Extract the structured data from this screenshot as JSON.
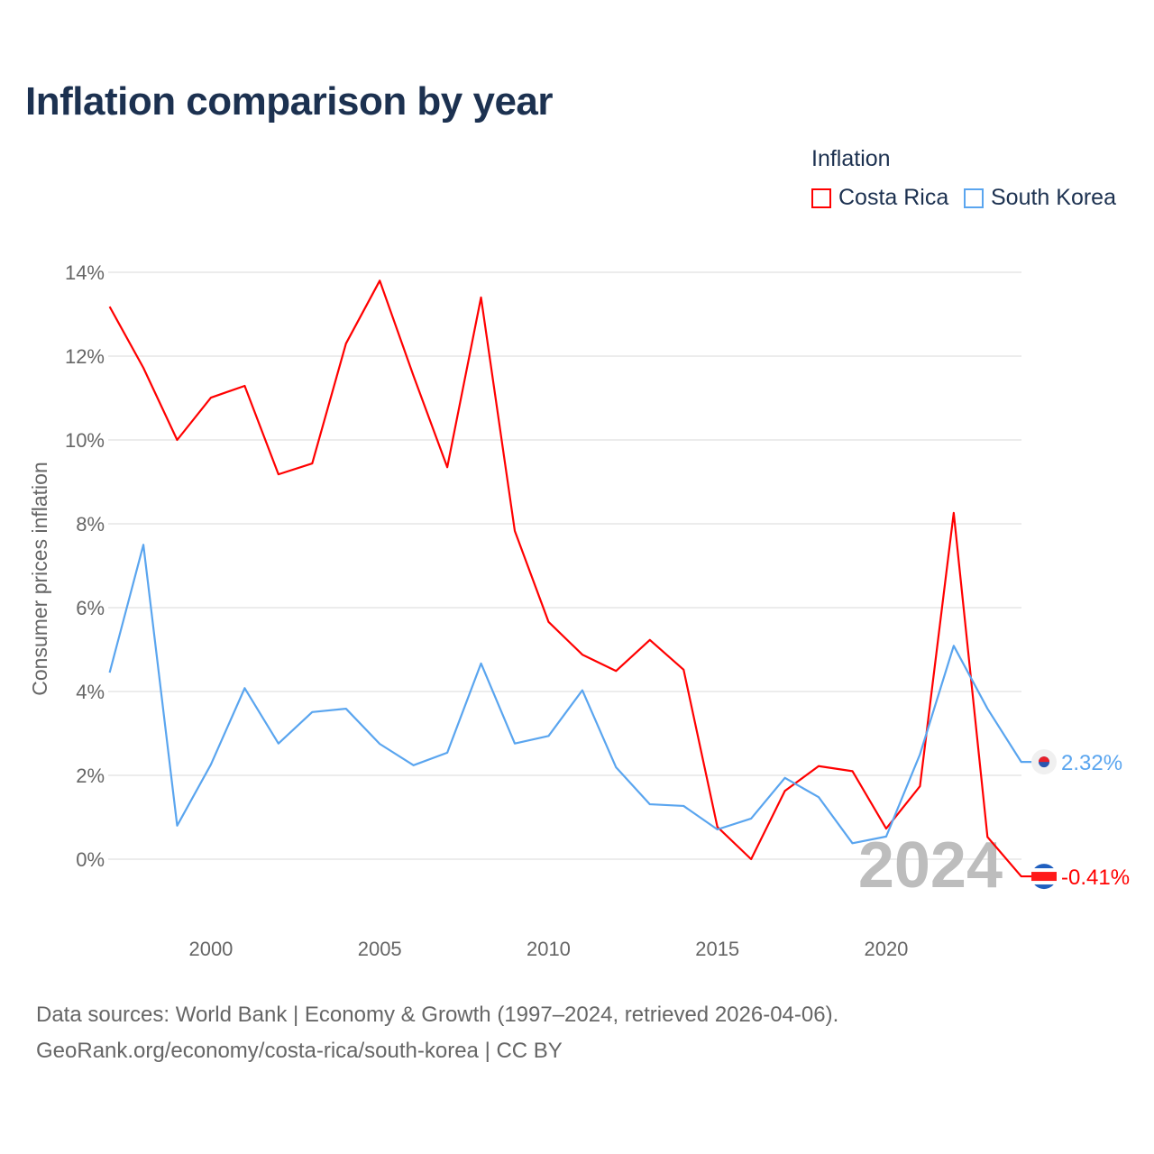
{
  "title": "Inflation comparison by year",
  "legend": {
    "title": "Inflation",
    "items": [
      {
        "name": "Costa Rica",
        "color": "#ff0000"
      },
      {
        "name": "South Korea",
        "color": "#5aa5ef"
      }
    ]
  },
  "source": {
    "line1": "Data sources: World Bank | Economy & Growth (1997–2024, retrieved 2026-04-06).",
    "line2": "GeoRank.org/economy/costa-rica/south-korea | CC BY"
  },
  "chart_data": {
    "type": "line",
    "title": "Inflation comparison by year",
    "xlabel": "",
    "ylabel": "Consumer prices inflation",
    "xlim": [
      1997,
      2024
    ],
    "ylim": [
      -0.8,
      14.5
    ],
    "x_ticks": [
      2000,
      2005,
      2010,
      2015,
      2020
    ],
    "y_ticks": [
      0,
      2,
      4,
      6,
      8,
      10,
      12,
      14
    ],
    "y_tick_suffix": "%",
    "grid": true,
    "legend_position": "top-right",
    "year_watermark": "2024",
    "x": [
      1997,
      1998,
      1999,
      2000,
      2001,
      2002,
      2003,
      2004,
      2005,
      2006,
      2007,
      2008,
      2009,
      2010,
      2011,
      2012,
      2013,
      2014,
      2015,
      2016,
      2017,
      2018,
      2019,
      2020,
      2021,
      2022,
      2023,
      2024
    ],
    "series": [
      {
        "name": "Costa Rica",
        "color": "#ff0000",
        "end_label": "-0.41%",
        "values": [
          13.18,
          11.72,
          10.0,
          11.01,
          11.29,
          9.18,
          9.44,
          12.3,
          13.8,
          11.53,
          9.35,
          13.4,
          7.83,
          5.66,
          4.88,
          4.49,
          5.23,
          4.52,
          0.77,
          0.0,
          1.63,
          2.22,
          2.1,
          0.73,
          1.74,
          8.26,
          0.53,
          -0.41
        ]
      },
      {
        "name": "South Korea",
        "color": "#5aa5ef",
        "end_label": "2.32%",
        "values": [
          4.45,
          7.5,
          0.8,
          2.26,
          4.08,
          2.76,
          3.51,
          3.59,
          2.75,
          2.24,
          2.54,
          4.67,
          2.76,
          2.94,
          4.03,
          2.19,
          1.31,
          1.27,
          0.71,
          0.97,
          1.94,
          1.48,
          0.38,
          0.54,
          2.5,
          5.09,
          3.59,
          2.32
        ]
      }
    ]
  }
}
